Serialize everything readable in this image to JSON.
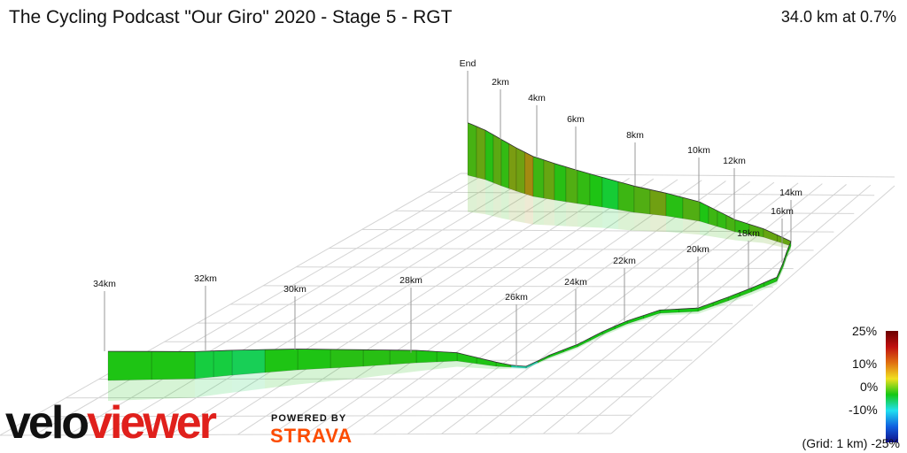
{
  "header": {
    "title": "The Cycling Podcast \"Our Giro\" 2020 - Stage 5 - RGT",
    "summary": "34.0 km at 0.7%"
  },
  "legend": {
    "labels": [
      "25%",
      "10%",
      "0%",
      "-10%",
      "-25%"
    ],
    "grid_note": "(Grid: 1 km)",
    "colors": [
      "#6b0000",
      "#c01010",
      "#e07010",
      "#f0e020",
      "#14c814",
      "#20e0f0",
      "#1060e0",
      "#10108a"
    ]
  },
  "branding": {
    "logo_part1": "velo",
    "logo_part2": "viewer",
    "powered_by": "POWERED BY",
    "strava": "STRAVA",
    "logo_colors": {
      "velo": "#111111",
      "viewer": "#e0201c",
      "strava": "#fc4c02"
    }
  },
  "chart_data": {
    "type": "area",
    "title": "The Cycling Podcast \"Our Giro\" 2020 - Stage 5 - RGT",
    "total_distance_km": 34.0,
    "average_gradient_pct": 0.7,
    "gradient_color_scale": [
      {
        "gradient_pct": 25,
        "color": "#6b0000"
      },
      {
        "gradient_pct": 10,
        "color": "#e07010"
      },
      {
        "gradient_pct": 0,
        "color": "#14c814"
      },
      {
        "gradient_pct": -10,
        "color": "#20e0f0"
      },
      {
        "gradient_pct": -25,
        "color": "#10108a"
      }
    ],
    "distance_labels": [
      "End",
      "2km",
      "4km",
      "6km",
      "8km",
      "10km",
      "12km",
      "14km",
      "16km",
      "18km",
      "20km",
      "22km",
      "24km",
      "26km",
      "28km",
      "30km",
      "32km",
      "34km"
    ],
    "segments": [
      {
        "km_from": 0.0,
        "km_to": 0.5,
        "gradient_pct": 2.5
      },
      {
        "km_from": 0.5,
        "km_to": 1.0,
        "gradient_pct": 4.0
      },
      {
        "km_from": 1.0,
        "km_to": 1.5,
        "gradient_pct": 1.0
      },
      {
        "km_from": 1.5,
        "km_to": 2.0,
        "gradient_pct": 3.5
      },
      {
        "km_from": 2.0,
        "km_to": 2.5,
        "gradient_pct": 1.5
      },
      {
        "km_from": 2.5,
        "km_to": 3.0,
        "gradient_pct": 5.0
      },
      {
        "km_from": 3.0,
        "km_to": 3.5,
        "gradient_pct": 4.5
      },
      {
        "km_from": 3.5,
        "km_to": 4.0,
        "gradient_pct": 7.0
      },
      {
        "km_from": 4.0,
        "km_to": 4.5,
        "gradient_pct": 2.0
      },
      {
        "km_from": 4.5,
        "km_to": 5.0,
        "gradient_pct": 4.0
      },
      {
        "km_from": 5.0,
        "km_to": 5.5,
        "gradient_pct": 1.0
      },
      {
        "km_from": 5.5,
        "km_to": 6.0,
        "gradient_pct": 3.0
      },
      {
        "km_from": 6.0,
        "km_to": 6.5,
        "gradient_pct": 1.5
      },
      {
        "km_from": 6.5,
        "km_to": 7.0,
        "gradient_pct": 0.5
      },
      {
        "km_from": 7.0,
        "km_to": 7.5,
        "gradient_pct": -1.5
      },
      {
        "km_from": 7.5,
        "km_to": 8.0,
        "gradient_pct": 2.0
      },
      {
        "km_from": 8.0,
        "km_to": 8.5,
        "gradient_pct": 3.0
      },
      {
        "km_from": 8.5,
        "km_to": 9.0,
        "gradient_pct": 4.5
      },
      {
        "km_from": 9.0,
        "km_to": 9.5,
        "gradient_pct": 1.0
      },
      {
        "km_from": 9.5,
        "km_to": 10.0,
        "gradient_pct": 3.0
      },
      {
        "km_from": 10.0,
        "km_to": 10.5,
        "gradient_pct": 0.5
      },
      {
        "km_from": 10.5,
        "km_to": 11.0,
        "gradient_pct": 2.0
      },
      {
        "km_from": 11.0,
        "km_to": 11.5,
        "gradient_pct": 1.5
      },
      {
        "km_from": 11.5,
        "km_to": 12.0,
        "gradient_pct": 2.5
      },
      {
        "km_from": 12.0,
        "km_to": 12.5,
        "gradient_pct": 1.5
      },
      {
        "km_from": 12.5,
        "km_to": 13.0,
        "gradient_pct": 3.0
      },
      {
        "km_from": 13.0,
        "km_to": 14.0,
        "gradient_pct": 4.0
      },
      {
        "km_from": 14.0,
        "km_to": 20.0,
        "gradient_pct": 0.5
      },
      {
        "km_from": 20.0,
        "km_to": 25.5,
        "gradient_pct": 0.0
      },
      {
        "km_from": 25.5,
        "km_to": 26.5,
        "gradient_pct": -7.0
      },
      {
        "km_from": 26.5,
        "km_to": 29.0,
        "gradient_pct": 0.5
      },
      {
        "km_from": 29.0,
        "km_to": 30.5,
        "gradient_pct": 1.0
      },
      {
        "km_from": 30.5,
        "km_to": 31.5,
        "gradient_pct": 0.5
      },
      {
        "km_from": 31.5,
        "km_to": 32.0,
        "gradient_pct": -3.0
      },
      {
        "km_from": 32.0,
        "km_to": 33.0,
        "gradient_pct": -2.0
      },
      {
        "km_from": 33.0,
        "km_to": 34.0,
        "gradient_pct": 0.5
      }
    ]
  }
}
